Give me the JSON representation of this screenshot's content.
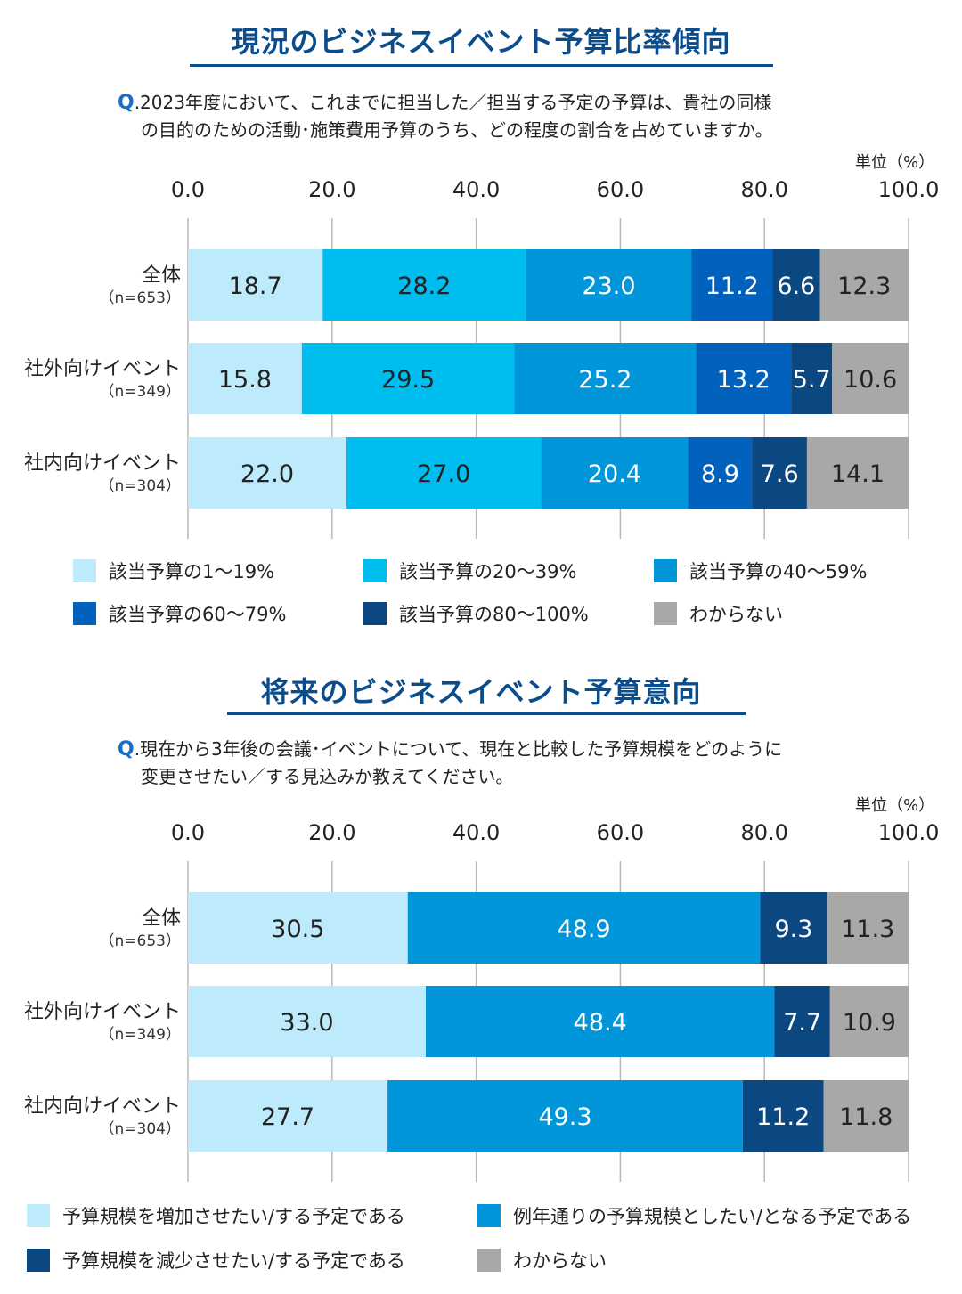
{
  "chart_data": [
    {
      "type": "bar",
      "orientation": "horizontal-stacked-percent",
      "title": "現況のビジネスイベント予算比率傾向",
      "question_mark": "Q",
      "question_line1": ".2023年度において、これまでに担当した／担当する予定の予算は、貴社の同様",
      "question_line2": "の目的のための活動･施策費用予算のうち、どの程度の割合を占めていますか。",
      "unit": "単位（%）",
      "xlim": [
        0,
        100
      ],
      "ticks": [
        "0.0",
        "20.0",
        "40.0",
        "60.0",
        "80.0",
        "100.0"
      ],
      "categories": [
        {
          "label": "全体",
          "n": "（n=653）"
        },
        {
          "label": "社外向けイベント",
          "n": "（n=349）"
        },
        {
          "label": "社内向けイベント",
          "n": "（n=304）"
        }
      ],
      "series": [
        {
          "name": "該当予算の1～19%",
          "color": "#bdebfb",
          "text_color": "#222222",
          "values": [
            18.7,
            15.8,
            22.0
          ],
          "labels": [
            "18.7",
            "15.8",
            "22.0"
          ]
        },
        {
          "name": "該当予算の20～39%",
          "color": "#00bdf0",
          "text_color": "#222222",
          "values": [
            28.2,
            29.5,
            27.0
          ],
          "labels": [
            "28.2",
            "29.5",
            "27.0"
          ]
        },
        {
          "name": "該当予算の40～59%",
          "color": "#0096d9",
          "text_color": "#ffffff",
          "values": [
            23.0,
            25.2,
            20.4
          ],
          "labels": [
            "23.0",
            "25.2",
            "20.4"
          ]
        },
        {
          "name": "該当予算の60～79%",
          "color": "#0062bd",
          "text_color": "#ffffff",
          "values": [
            11.2,
            13.2,
            8.9
          ],
          "labels": [
            "11.2",
            "13.2",
            "8.9"
          ]
        },
        {
          "name": "該当予算の80～100%",
          "color": "#0b4780",
          "text_color": "#ffffff",
          "values": [
            6.6,
            5.7,
            7.6
          ],
          "labels": [
            "6.6",
            "5.7",
            "7.6"
          ]
        },
        {
          "name": "わからない",
          "color": "#a8a8a8",
          "text_color": "#222222",
          "values": [
            12.3,
            10.6,
            14.1
          ],
          "labels": [
            "12.3",
            "10.6",
            "14.1"
          ]
        }
      ]
    },
    {
      "type": "bar",
      "orientation": "horizontal-stacked-percent",
      "title": "将来のビジネスイベント予算意向",
      "question_mark": "Q",
      "question_line1": ".現在から3年後の会議･イベントについて、現在と比較した予算規模をどのように",
      "question_line2": "変更させたい／する見込みか教えてください。",
      "unit": "単位（%）",
      "xlim": [
        0,
        100
      ],
      "ticks": [
        "0.0",
        "20.0",
        "40.0",
        "60.0",
        "80.0",
        "100.0"
      ],
      "categories": [
        {
          "label": "全体",
          "n": "（n=653）"
        },
        {
          "label": "社外向けイベント",
          "n": "（n=349）"
        },
        {
          "label": "社内向けイベント",
          "n": "（n=304）"
        }
      ],
      "series": [
        {
          "name": "予算規模を増加させたい/する予定である",
          "color": "#bdebfb",
          "text_color": "#222222",
          "values": [
            30.5,
            33.0,
            27.7
          ],
          "labels": [
            "30.5",
            "33.0",
            "27.7"
          ]
        },
        {
          "name": "例年通りの予算規模としたい/となる予定である",
          "color": "#0096d9",
          "text_color": "#ffffff",
          "values": [
            48.9,
            48.4,
            49.3
          ],
          "labels": [
            "48.9",
            "48.4",
            "49.3"
          ]
        },
        {
          "name": "予算規模を減少させたい/する予定である",
          "color": "#0b4780",
          "text_color": "#ffffff",
          "values": [
            9.3,
            7.7,
            11.2
          ],
          "labels": [
            "9.3",
            "7.7",
            "11.2"
          ]
        },
        {
          "name": "わからない",
          "color": "#a8a8a8",
          "text_color": "#222222",
          "values": [
            11.3,
            10.9,
            11.8
          ],
          "labels": [
            "11.3",
            "10.9",
            "11.8"
          ]
        }
      ]
    }
  ]
}
